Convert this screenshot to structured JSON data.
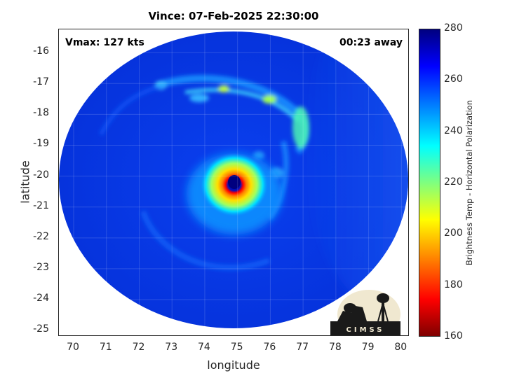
{
  "title": "Vince: 07-Feb-2025 22:30:00",
  "annotations": {
    "vmax": "Vmax: 127 kts",
    "time_away": "00:23 away"
  },
  "axes": {
    "xlabel": "longitude",
    "ylabel": "latitude",
    "xticks": [
      "70",
      "71",
      "72",
      "73",
      "74",
      "75",
      "76",
      "77",
      "78",
      "79",
      "80"
    ],
    "yticks": [
      "-16",
      "-17",
      "-18",
      "-19",
      "-20",
      "-21",
      "-22",
      "-23",
      "-24",
      "-25"
    ],
    "xlim": [
      69.55,
      80.25
    ],
    "ylim": [
      -25.2,
      -15.25
    ]
  },
  "colorbar": {
    "label": "Brightness Temp - Horizontal Polarization",
    "ticks": [
      "280",
      "260",
      "240",
      "220",
      "200",
      "180",
      "160"
    ],
    "range": [
      160,
      280
    ],
    "colormap": "jet"
  },
  "logo": {
    "text": "CIMSS"
  },
  "colors": {
    "background_swath": "#0a3ce6",
    "eye": "#00007f",
    "eyewall": "#ff3000"
  }
}
